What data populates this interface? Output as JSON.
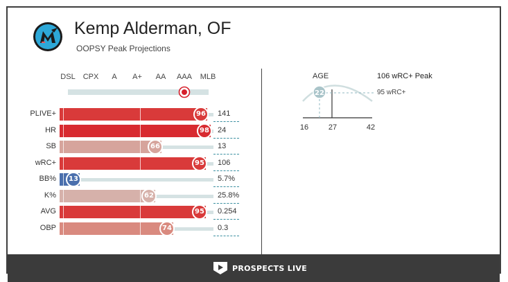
{
  "header": {
    "player_name": "Kemp Alderman, OF",
    "subtitle": "OOPSY Peak Projections",
    "team_logo_icon": "marlins-m-logo-icon"
  },
  "levels": {
    "labels": [
      "DSL",
      "CPX",
      "A",
      "A+",
      "AA",
      "AAA",
      "MLB"
    ],
    "current": "AAA"
  },
  "stats": [
    {
      "label": "PLIVE+",
      "percentile": 96,
      "value": "141",
      "color": "#d93a3a"
    },
    {
      "label": "HR",
      "percentile": 98,
      "value": "24",
      "color": "#d82a30"
    },
    {
      "label": "SB",
      "percentile": 66,
      "value": "13",
      "color": "#d6a49c"
    },
    {
      "label": "wRC+",
      "percentile": 95,
      "value": "106",
      "color": "#d93a3a"
    },
    {
      "label": "BB%",
      "percentile": 13,
      "value": "5.7%",
      "color": "#4a6fad"
    },
    {
      "label": "K%",
      "percentile": 62,
      "value": "25.8%",
      "color": "#d6b1aa"
    },
    {
      "label": "AVG",
      "percentile": 95,
      "value": "0.254",
      "color": "#d93a3a"
    },
    {
      "label": "OBP",
      "percentile": 74,
      "value": "0.3",
      "color": "#d98a7f"
    }
  ],
  "age_curve": {
    "title": "AGE",
    "current_age": "22",
    "peak_age": 27,
    "min_age": 16,
    "max_age": 42,
    "ticks": [
      "16",
      "27",
      "42"
    ],
    "peak_label": "106 wRC+ Peak",
    "current_label": "95 wRC+"
  },
  "footer": {
    "brand": "PROSPECTS LIVE",
    "brand_icon": "home-plate-play-icon"
  },
  "colors": {
    "track": "#d5e2e3",
    "dash": "#3a8fa0",
    "level_marker": "#d6202c",
    "footer_bg": "#3b3b3b"
  }
}
